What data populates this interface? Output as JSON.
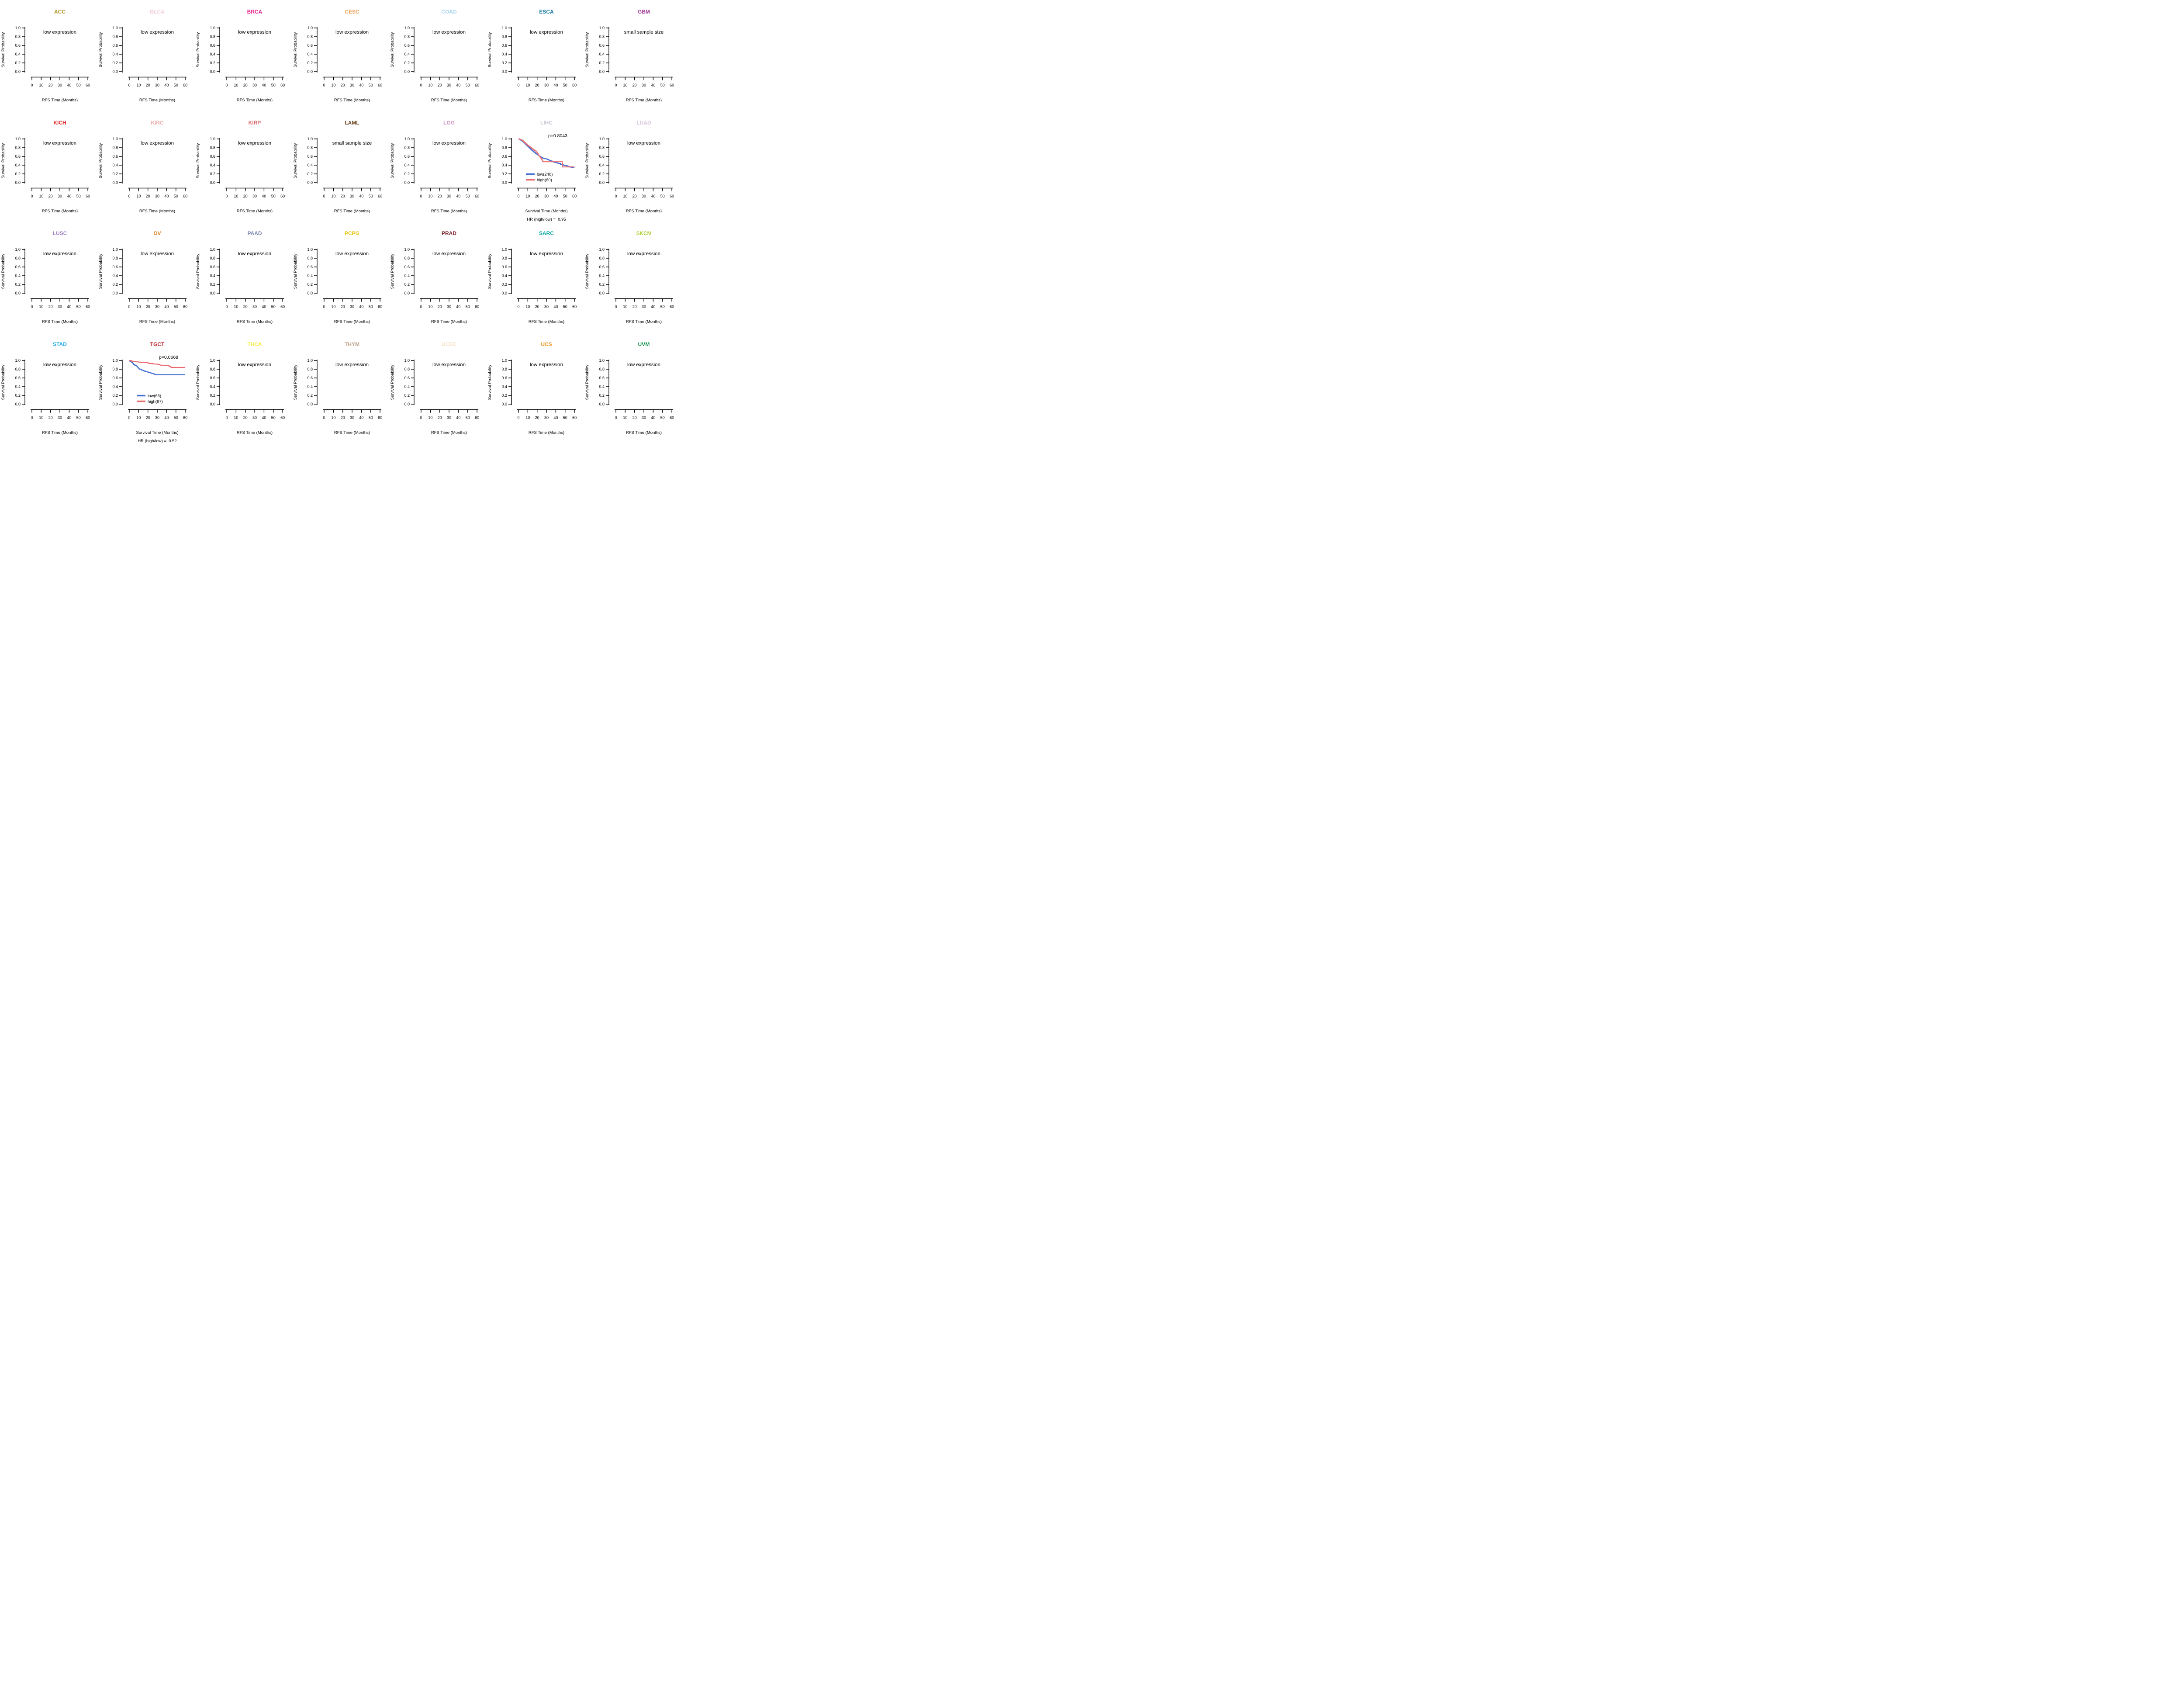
{
  "figure": {
    "y_axis_title": "Survival Probability",
    "y_ticks": [
      "0.0",
      "0.2",
      "0.4",
      "0.6",
      "0.8",
      "1.0"
    ],
    "x_ticks": [
      "0",
      "10",
      "20",
      "30",
      "40",
      "50",
      "60"
    ],
    "x_max": 60,
    "default_x_axis_title": "RFS Time (Months)",
    "km_x_axis_title": "Survival Time (Months)",
    "curve_colors": {
      "low": "#4470d4",
      "high": "#e96b6f"
    },
    "axis_color": "#000000"
  },
  "chart_data": {
    "type": "km-grid",
    "rows": 4,
    "cols": 7,
    "panels": [
      {
        "title": "ACC",
        "title_color": "#b4992c",
        "status": "empty",
        "message": "low expression",
        "xlabel": "RFS Time (Months)"
      },
      {
        "title": "BLCA",
        "title_color": "#f4cbdb",
        "status": "empty",
        "message": "low expression",
        "xlabel": "RFS Time (Months)"
      },
      {
        "title": "BRCA",
        "title_color": "#e5268c",
        "status": "empty",
        "message": "low expression",
        "xlabel": "RFS Time (Months)"
      },
      {
        "title": "CESC",
        "title_color": "#eea45b",
        "status": "empty",
        "message": "low expression",
        "xlabel": "RFS Time (Months)"
      },
      {
        "title": "COAD",
        "title_color": "#a9d7f1",
        "status": "empty",
        "message": "low expression",
        "xlabel": "RFS Time (Months)"
      },
      {
        "title": "ESCA",
        "title_color": "#1a7ba6",
        "status": "empty",
        "message": "low expression",
        "xlabel": "RFS Time (Months)"
      },
      {
        "title": "GBM",
        "title_color": "#a13e98",
        "status": "empty",
        "message": "small sample size",
        "xlabel": "RFS Time (Months)"
      },
      {
        "title": "KICH",
        "title_color": "#e62629",
        "status": "empty",
        "message": "low expression",
        "xlabel": "RFS Time (Months)"
      },
      {
        "title": "KIRC",
        "title_color": "#f0aaab",
        "status": "empty",
        "message": "low expression",
        "xlabel": "RFS Time (Months)"
      },
      {
        "title": "KIRP",
        "title_color": "#d7666b",
        "status": "empty",
        "message": "low expression",
        "xlabel": "RFS Time (Months)"
      },
      {
        "title": "LAML",
        "title_color": "#6d4a28",
        "status": "empty",
        "message": "small sample size",
        "xlabel": "RFS Time (Months)"
      },
      {
        "title": "LGG",
        "title_color": "#d08ec0",
        "status": "empty",
        "message": "low expression",
        "xlabel": "RFS Time (Months)"
      },
      {
        "title": "LIHC",
        "title_color": "#c9c9d8",
        "status": "km",
        "p_value": "p=0.8043",
        "xlabel": "Survival Time (Months)",
        "hr_label": "HR (high/low) =  0.95",
        "legend": [
          {
            "label": "low(240)",
            "group": "low"
          },
          {
            "label": "high(80)",
            "group": "high"
          }
        ],
        "series": [
          {
            "name": "low",
            "color": "#4470d4",
            "points": [
              [
                0,
                1.0
              ],
              [
                1,
                0.99
              ],
              [
                2,
                0.975
              ],
              [
                3,
                0.96
              ],
              [
                4,
                0.945
              ],
              [
                5,
                0.925
              ],
              [
                6,
                0.905
              ],
              [
                7,
                0.885
              ],
              [
                8,
                0.865
              ],
              [
                9,
                0.845
              ],
              [
                10,
                0.825
              ],
              [
                11,
                0.805
              ],
              [
                12,
                0.785
              ],
              [
                13,
                0.765
              ],
              [
                14,
                0.745
              ],
              [
                15,
                0.725
              ],
              [
                16,
                0.705
              ],
              [
                17,
                0.69
              ],
              [
                18,
                0.672
              ],
              [
                19,
                0.655
              ],
              [
                20,
                0.64
              ],
              [
                21,
                0.625
              ],
              [
                22,
                0.61
              ],
              [
                23,
                0.598
              ],
              [
                24,
                0.585
              ],
              [
                25,
                0.572
              ],
              [
                26,
                0.562
              ],
              [
                27,
                0.553
              ],
              [
                28,
                0.547
              ],
              [
                30,
                0.54
              ],
              [
                31,
                0.53
              ],
              [
                32,
                0.52
              ],
              [
                33,
                0.512
              ],
              [
                34,
                0.504
              ],
              [
                35,
                0.496
              ],
              [
                36,
                0.488
              ],
              [
                37,
                0.478
              ],
              [
                38,
                0.468
              ],
              [
                39,
                0.46
              ],
              [
                41,
                0.452
              ],
              [
                42,
                0.444
              ],
              [
                43,
                0.44
              ],
              [
                45,
                0.42
              ],
              [
                47,
                0.415
              ],
              [
                48,
                0.4
              ],
              [
                50,
                0.39
              ],
              [
                52,
                0.382
              ],
              [
                53,
                0.375
              ],
              [
                54,
                0.368
              ],
              [
                55,
                0.36
              ],
              [
                56,
                0.352
              ],
              [
                57,
                0.345
              ],
              [
                60,
                0.345
              ]
            ]
          },
          {
            "name": "high",
            "color": "#e96b6f",
            "points": [
              [
                0,
                1.0
              ],
              [
                1.5,
                0.9875
              ],
              [
                3,
                0.975
              ],
              [
                4,
                0.9625
              ],
              [
                5,
                0.95
              ],
              [
                5.5,
                0.9375
              ],
              [
                6,
                0.925
              ],
              [
                7,
                0.9125
              ],
              [
                7.5,
                0.9
              ],
              [
                8,
                0.8875
              ],
              [
                9,
                0.875
              ],
              [
                9.5,
                0.8625
              ],
              [
                10,
                0.85
              ],
              [
                11,
                0.8375
              ],
              [
                11.5,
                0.825
              ],
              [
                12.5,
                0.8125
              ],
              [
                13,
                0.8
              ],
              [
                14,
                0.7875
              ],
              [
                14.5,
                0.775
              ],
              [
                15.5,
                0.7625
              ],
              [
                16,
                0.75
              ],
              [
                17,
                0.7375
              ],
              [
                18,
                0.725
              ],
              [
                19,
                0.7
              ],
              [
                20,
                0.68
              ],
              [
                20.5,
                0.66
              ],
              [
                21,
                0.635
              ],
              [
                22,
                0.61
              ],
              [
                23,
                0.585
              ],
              [
                24,
                0.56
              ],
              [
                25,
                0.52
              ],
              [
                26,
                0.478
              ],
              [
                47,
                0.36
              ],
              [
                60,
                0.36
              ]
            ]
          }
        ]
      },
      {
        "title": "LUAD",
        "title_color": "#d6c3dc",
        "status": "empty",
        "message": "low expression",
        "xlabel": "RFS Time (Months)"
      },
      {
        "title": "LUSC",
        "title_color": "#9e7fc3",
        "status": "empty",
        "message": "low expression",
        "xlabel": "RFS Time (Months)"
      },
      {
        "title": "OV",
        "title_color": "#d9831d",
        "status": "empty",
        "message": "low expression",
        "xlabel": "RFS Time (Months)"
      },
      {
        "title": "PAAD",
        "title_color": "#7a86b3",
        "status": "empty",
        "message": "low expression",
        "xlabel": "RFS Time (Months)"
      },
      {
        "title": "PCPG",
        "title_color": "#e6c414",
        "status": "empty",
        "message": "low expression",
        "xlabel": "RFS Time (Months)"
      },
      {
        "title": "PRAD",
        "title_color": "#7c212c",
        "status": "empty",
        "message": "low expression",
        "xlabel": "RFS Time (Months)"
      },
      {
        "title": "SARC",
        "title_color": "#02a39e",
        "status": "empty",
        "message": "low expression",
        "xlabel": "RFS Time (Months)"
      },
      {
        "title": "SKCM",
        "title_color": "#b0d139",
        "status": "empty",
        "message": "low expression",
        "xlabel": "RFS Time (Months)"
      },
      {
        "title": "STAD",
        "title_color": "#1face6",
        "status": "empty",
        "message": "low expression",
        "xlabel": "RFS Time (Months)"
      },
      {
        "title": "TGCT",
        "title_color": "#c0242f",
        "status": "km",
        "p_value": "p=0.0668",
        "xlabel": "Survival Time (Months)",
        "hr_label": "HR (high/low) =  0.52",
        "legend": [
          {
            "label": "low(66)",
            "group": "low"
          },
          {
            "label": "high(67)",
            "group": "high"
          }
        ],
        "series": [
          {
            "name": "low",
            "color": "#4470d4",
            "points": [
              [
                0,
                1.0
              ],
              [
                0.5,
                0.985
              ],
              [
                1.5,
                0.97
              ],
              [
                2.5,
                0.955
              ],
              [
                3.5,
                0.94
              ],
              [
                4,
                0.925
              ],
              [
                4.5,
                0.91
              ],
              [
                5.5,
                0.895
              ],
              [
                6.5,
                0.885
              ],
              [
                7.5,
                0.872
              ],
              [
                8.5,
                0.858
              ],
              [
                9,
                0.845
              ],
              [
                9.5,
                0.832
              ],
              [
                10,
                0.82
              ],
              [
                10.5,
                0.808
              ],
              [
                11,
                0.8
              ],
              [
                13,
                0.788
              ],
              [
                13.5,
                0.775
              ],
              [
                15,
                0.765
              ],
              [
                16,
                0.755
              ],
              [
                17.5,
                0.748
              ],
              [
                19,
                0.74
              ],
              [
                20,
                0.73
              ],
              [
                21,
                0.722
              ],
              [
                23,
                0.712
              ],
              [
                24,
                0.705
              ],
              [
                25.5,
                0.697
              ],
              [
                26.5,
                0.69
              ],
              [
                27,
                0.675
              ],
              [
                60,
                0.675
              ]
            ]
          },
          {
            "name": "high",
            "color": "#e96b6f",
            "points": [
              [
                0,
                1.0
              ],
              [
                1.5,
                0.995
              ],
              [
                2.5,
                0.985
              ],
              [
                4,
                0.978
              ],
              [
                6,
                0.972
              ],
              [
                8,
                0.968
              ],
              [
                10,
                0.962
              ],
              [
                12,
                0.957
              ],
              [
                14,
                0.952
              ],
              [
                19.5,
                0.945
              ],
              [
                20.5,
                0.937
              ],
              [
                21.5,
                0.93
              ],
              [
                25,
                0.925
              ],
              [
                26,
                0.918
              ],
              [
                30,
                0.912
              ],
              [
                32.5,
                0.905
              ],
              [
                33,
                0.893
              ],
              [
                34,
                0.888
              ],
              [
                40,
                0.883
              ],
              [
                42,
                0.876
              ],
              [
                43,
                0.868
              ],
              [
                44,
                0.848
              ],
              [
                45,
                0.84
              ],
              [
                60,
                0.84
              ]
            ]
          }
        ]
      },
      {
        "title": "THCA",
        "title_color": "#f6ec3d",
        "status": "empty",
        "message": "low expression",
        "xlabel": "RFS Time (Months)"
      },
      {
        "title": "THYM",
        "title_color": "#c0a085",
        "status": "empty",
        "message": "low expression",
        "xlabel": "RFS Time (Months)"
      },
      {
        "title": "UCEC",
        "title_color": "#f6e1c5",
        "status": "empty",
        "message": "low expression",
        "xlabel": "RFS Time (Months)"
      },
      {
        "title": "UCS",
        "title_color": "#f19220",
        "status": "empty",
        "message": "low expression",
        "xlabel": "RFS Time (Months)"
      },
      {
        "title": "UVM",
        "title_color": "#11904a",
        "status": "empty",
        "message": "low expression",
        "xlabel": "RFS Time (Months)"
      }
    ]
  }
}
